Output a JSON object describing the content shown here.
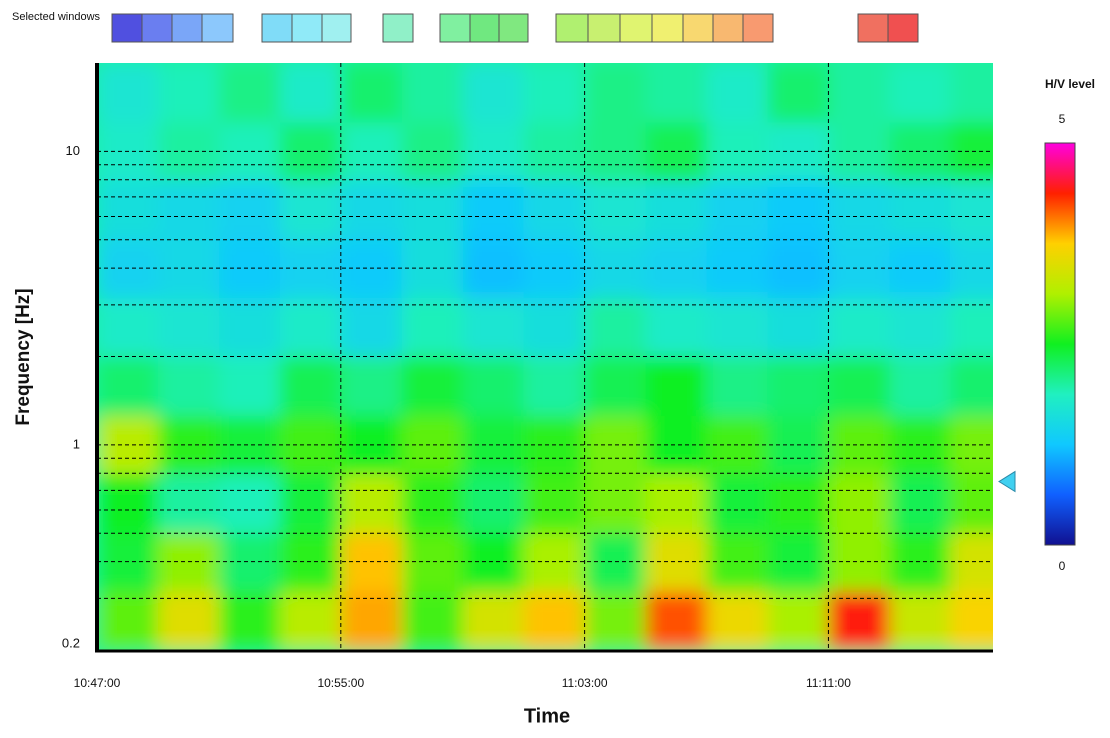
{
  "chart_data": {
    "type": "heatmap",
    "window_label": "Selected windows",
    "x_label": "Time",
    "y_label": "Frequency [Hz]",
    "colorbar_label": "H/V level",
    "xlim": [
      "10:47:00",
      "11:16:24"
    ],
    "xticks": [
      "10:47:00",
      "10:55:00",
      "11:03:00",
      "11:11:00"
    ],
    "ylim": [
      0.2,
      20
    ],
    "yscale": "log",
    "yticks": [
      0.2,
      1,
      10
    ],
    "ygrid": [
      0.3,
      0.4,
      0.5,
      0.6,
      0.7,
      0.8,
      0.9,
      1,
      2,
      3,
      4,
      5,
      6,
      7,
      8,
      9,
      10
    ],
    "grid": true,
    "x_edges": [
      "10:47:00",
      "10:49:00",
      "10:51:00",
      "10:53:00",
      "10:55:00",
      "10:57:00",
      "10:59:00",
      "11:01:00",
      "11:03:00",
      "11:05:00",
      "11:07:00",
      "11:09:00",
      "11:11:00",
      "11:13:00",
      "11:15:00",
      "11:17:00"
    ],
    "y_edges": [
      0.2,
      0.317,
      0.502,
      0.796,
      1.26,
      2,
      3.17,
      5.02,
      7.96,
      12.6,
      20
    ],
    "values": [
      [
        2.8,
        3.5,
        2.6,
        3.2,
        3.9,
        2.7,
        3.4,
        3.8,
        2.9,
        4.2,
        3.6,
        3.1,
        4.4,
        3.3,
        3.7
      ],
      [
        2.4,
        3.0,
        2.2,
        2.6,
        3.8,
        2.8,
        2.5,
        3.1,
        2.3,
        3.5,
        2.7,
        2.4,
        3.0,
        2.6,
        3.4
      ],
      [
        2.5,
        2.0,
        1.9,
        2.4,
        3.2,
        2.6,
        2.2,
        2.7,
        2.9,
        3.1,
        2.4,
        2.6,
        3.0,
        2.3,
        2.8
      ],
      [
        3.2,
        2.6,
        2.4,
        2.7,
        2.5,
        2.8,
        2.4,
        2.6,
        2.9,
        2.5,
        2.7,
        2.3,
        2.8,
        2.6,
        2.9
      ],
      [
        2.2,
        2.0,
        1.9,
        2.3,
        2.1,
        2.4,
        2.2,
        2.0,
        2.3,
        2.5,
        2.1,
        2.2,
        2.3,
        2.0,
        2.2
      ],
      [
        1.8,
        1.7,
        1.6,
        1.8,
        1.5,
        1.9,
        1.7,
        1.6,
        2.0,
        1.8,
        1.7,
        1.6,
        1.8,
        1.7,
        1.9
      ],
      [
        1.4,
        1.5,
        1.3,
        1.4,
        1.3,
        1.6,
        1.2,
        1.3,
        1.5,
        1.4,
        1.3,
        1.2,
        1.4,
        1.3,
        1.5
      ],
      [
        1.6,
        1.5,
        1.4,
        1.7,
        1.5,
        1.6,
        1.3,
        1.5,
        1.7,
        1.6,
        1.4,
        1.3,
        1.5,
        1.6,
        1.7
      ],
      [
        1.8,
        2.0,
        1.9,
        2.2,
        1.9,
        2.1,
        1.8,
        2.0,
        2.1,
        2.3,
        1.9,
        1.8,
        2.0,
        2.2,
        2.4
      ],
      [
        1.7,
        1.9,
        2.1,
        1.8,
        2.2,
        2.0,
        1.7,
        1.9,
        2.1,
        2.0,
        1.8,
        2.2,
        2.0,
        1.9,
        2.0
      ]
    ],
    "clim": [
      0,
      5
    ],
    "cticks": [
      0,
      5
    ],
    "colormap": [
      "#101090",
      "#1060ff",
      "#10c8ff",
      "#20f0c0",
      "#10f020",
      "#b0f000",
      "#ffd000",
      "#ff2000",
      "#ff00e0"
    ],
    "marker_frequency": 0.75,
    "marker_color": "#40d0f0"
  }
}
